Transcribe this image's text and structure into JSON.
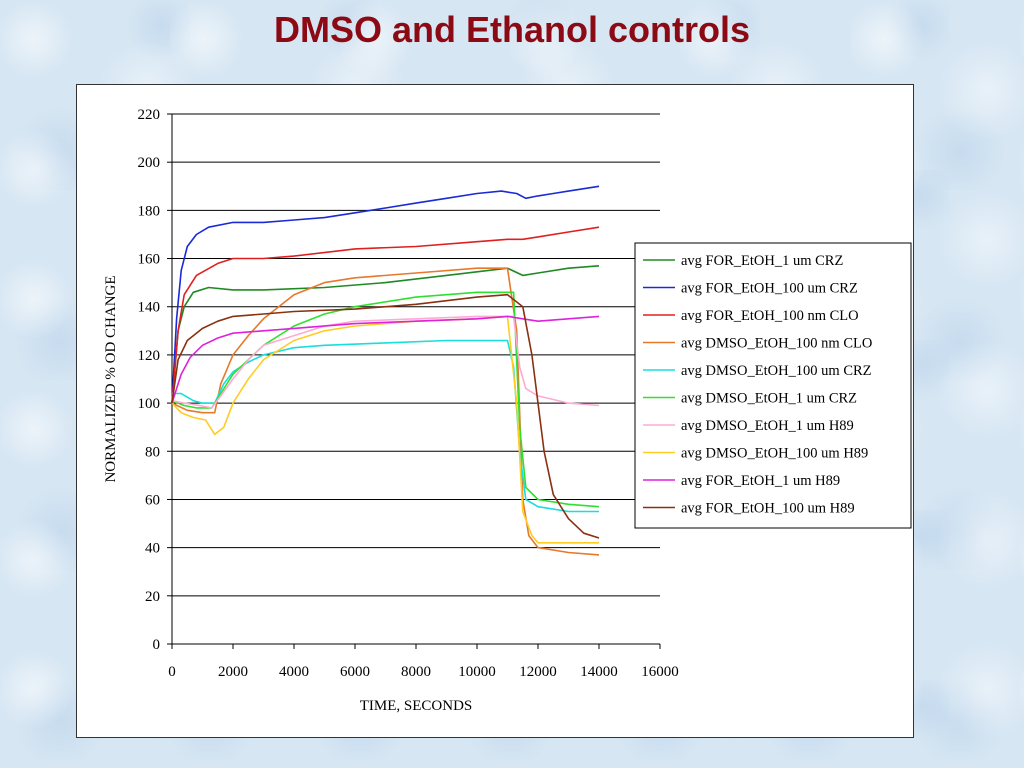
{
  "page": {
    "title": "DMSO and Ethanol controls"
  },
  "chart_data": {
    "type": "line",
    "title": "",
    "xlabel": "TIME, SECONDS",
    "ylabel": "NORMALIZED % OD CHANGE",
    "xlim": [
      0,
      16000
    ],
    "ylim": [
      0,
      220
    ],
    "xticks": [
      "0",
      "2000",
      "4000",
      "6000",
      "8000",
      "10000",
      "12000",
      "14000",
      "16000"
    ],
    "yticks": [
      "0",
      "20",
      "40",
      "60",
      "80",
      "100",
      "120",
      "140",
      "160",
      "180",
      "200",
      "220"
    ],
    "grid": "horizontal",
    "legend_position": "right",
    "series": [
      {
        "name": "avg FOR_EtOH_1 um CRZ",
        "color": "#1f8a24",
        "points": [
          [
            0,
            100
          ],
          [
            200,
            130
          ],
          [
            400,
            140
          ],
          [
            700,
            146
          ],
          [
            1200,
            148
          ],
          [
            2000,
            147
          ],
          [
            3000,
            147
          ],
          [
            5000,
            148
          ],
          [
            7000,
            150
          ],
          [
            9000,
            153
          ],
          [
            11000,
            156
          ],
          [
            11500,
            153
          ],
          [
            12000,
            154
          ],
          [
            13000,
            156
          ],
          [
            14000,
            157
          ]
        ]
      },
      {
        "name": "avg FOR_EtOH_100 um CRZ",
        "color": "#1a2ad6",
        "points": [
          [
            0,
            100
          ],
          [
            150,
            135
          ],
          [
            300,
            155
          ],
          [
            500,
            165
          ],
          [
            800,
            170
          ],
          [
            1200,
            173
          ],
          [
            2000,
            175
          ],
          [
            3000,
            175
          ],
          [
            4000,
            176
          ],
          [
            5000,
            177
          ],
          [
            6000,
            179
          ],
          [
            7000,
            181
          ],
          [
            8000,
            183
          ],
          [
            9000,
            185
          ],
          [
            10000,
            187
          ],
          [
            10800,
            188
          ],
          [
            11300,
            187
          ],
          [
            11600,
            185
          ],
          [
            12000,
            186
          ],
          [
            12500,
            187
          ],
          [
            13000,
            188
          ],
          [
            13500,
            189
          ],
          [
            14000,
            190
          ]
        ]
      },
      {
        "name": "avg FOR_EtOH_100 nm CLO",
        "color": "#e02020",
        "points": [
          [
            0,
            100
          ],
          [
            200,
            130
          ],
          [
            400,
            145
          ],
          [
            800,
            153
          ],
          [
            1500,
            158
          ],
          [
            2000,
            160
          ],
          [
            3000,
            160
          ],
          [
            4000,
            161
          ],
          [
            6000,
            164
          ],
          [
            8000,
            165
          ],
          [
            10000,
            167
          ],
          [
            11000,
            168
          ],
          [
            11500,
            168
          ],
          [
            12000,
            169
          ],
          [
            13000,
            171
          ],
          [
            14000,
            173
          ]
        ]
      },
      {
        "name": "avg DMSO_EtOH_100 nm CLO",
        "color": "#e8782a",
        "points": [
          [
            0,
            100
          ],
          [
            500,
            97
          ],
          [
            1000,
            96
          ],
          [
            1400,
            96
          ],
          [
            1600,
            108
          ],
          [
            2000,
            120
          ],
          [
            2500,
            128
          ],
          [
            3000,
            135
          ],
          [
            4000,
            145
          ],
          [
            5000,
            150
          ],
          [
            6000,
            152
          ],
          [
            8000,
            154
          ],
          [
            10000,
            156
          ],
          [
            11000,
            156
          ],
          [
            11300,
            130
          ],
          [
            11500,
            60
          ],
          [
            11700,
            45
          ],
          [
            12000,
            40
          ],
          [
            13000,
            38
          ],
          [
            14000,
            37
          ]
        ]
      },
      {
        "name": "avg DMSO_EtOH_100 um CRZ",
        "color": "#19dede",
        "points": [
          [
            0,
            104
          ],
          [
            300,
            104
          ],
          [
            700,
            101
          ],
          [
            1000,
            100
          ],
          [
            1400,
            100
          ],
          [
            1700,
            108
          ],
          [
            2000,
            113
          ],
          [
            2500,
            117
          ],
          [
            3000,
            120
          ],
          [
            4000,
            123
          ],
          [
            5000,
            124
          ],
          [
            7000,
            125
          ],
          [
            9000,
            126
          ],
          [
            11000,
            126
          ],
          [
            11200,
            115
          ],
          [
            11400,
            80
          ],
          [
            11600,
            60
          ],
          [
            12000,
            57
          ],
          [
            13000,
            55
          ],
          [
            14000,
            55
          ]
        ]
      },
      {
        "name": "avg DMSO_EtOH_1 um CRZ",
        "color": "#30e030",
        "points": [
          [
            0,
            101
          ],
          [
            400,
            99
          ],
          [
            800,
            98
          ],
          [
            1300,
            98
          ],
          [
            1600,
            104
          ],
          [
            2000,
            112
          ],
          [
            2500,
            118
          ],
          [
            3000,
            124
          ],
          [
            4000,
            132
          ],
          [
            5000,
            137
          ],
          [
            6000,
            140
          ],
          [
            8000,
            144
          ],
          [
            10000,
            146
          ],
          [
            11200,
            146
          ],
          [
            11400,
            90
          ],
          [
            11600,
            65
          ],
          [
            12000,
            60
          ],
          [
            13000,
            58
          ],
          [
            14000,
            57
          ]
        ]
      },
      {
        "name": "avg DMSO_EtOH_1 um H89",
        "color": "#ffaad4",
        "points": [
          [
            0,
            101
          ],
          [
            400,
            100
          ],
          [
            900,
            99
          ],
          [
            1300,
            98
          ],
          [
            1600,
            103
          ],
          [
            2000,
            110
          ],
          [
            2500,
            118
          ],
          [
            3000,
            124
          ],
          [
            4000,
            128
          ],
          [
            5000,
            132
          ],
          [
            6000,
            134
          ],
          [
            8000,
            135
          ],
          [
            10000,
            136
          ],
          [
            11200,
            136
          ],
          [
            11400,
            115
          ],
          [
            11600,
            106
          ],
          [
            12000,
            103
          ],
          [
            13000,
            100
          ],
          [
            14000,
            99
          ]
        ]
      },
      {
        "name": "avg DMSO_EtOH_100 um H89",
        "color": "#ffcc22",
        "points": [
          [
            0,
            100
          ],
          [
            300,
            96
          ],
          [
            700,
            94
          ],
          [
            1100,
            93
          ],
          [
            1400,
            87
          ],
          [
            1700,
            90
          ],
          [
            2000,
            100
          ],
          [
            2500,
            110
          ],
          [
            3000,
            118
          ],
          [
            4000,
            126
          ],
          [
            5000,
            130
          ],
          [
            6000,
            132
          ],
          [
            8000,
            134
          ],
          [
            10000,
            135
          ],
          [
            11000,
            136
          ],
          [
            11300,
            100
          ],
          [
            11500,
            55
          ],
          [
            11800,
            45
          ],
          [
            12000,
            42
          ],
          [
            13000,
            42
          ],
          [
            14000,
            42
          ]
        ]
      },
      {
        "name": "avg FOR_EtOH_1 um H89",
        "color": "#dd22dd",
        "points": [
          [
            0,
            100
          ],
          [
            300,
            112
          ],
          [
            600,
            119
          ],
          [
            1000,
            124
          ],
          [
            1500,
            127
          ],
          [
            2000,
            129
          ],
          [
            3000,
            130
          ],
          [
            4000,
            131
          ],
          [
            6000,
            133
          ],
          [
            8000,
            134
          ],
          [
            10000,
            135
          ],
          [
            11000,
            136
          ],
          [
            11500,
            135
          ],
          [
            12000,
            134
          ],
          [
            13000,
            135
          ],
          [
            14000,
            136
          ]
        ]
      },
      {
        "name": "avg FOR_EtOH_100 um H89",
        "color": "#8b3010",
        "points": [
          [
            0,
            100
          ],
          [
            200,
            118
          ],
          [
            500,
            126
          ],
          [
            1000,
            131
          ],
          [
            1500,
            134
          ],
          [
            2000,
            136
          ],
          [
            3000,
            137
          ],
          [
            4000,
            138
          ],
          [
            6000,
            139
          ],
          [
            8000,
            141
          ],
          [
            10000,
            144
          ],
          [
            11000,
            145
          ],
          [
            11500,
            140
          ],
          [
            11800,
            120
          ],
          [
            12000,
            100
          ],
          [
            12200,
            80
          ],
          [
            12500,
            62
          ],
          [
            13000,
            52
          ],
          [
            13500,
            46
          ],
          [
            14000,
            44
          ]
        ]
      }
    ]
  }
}
